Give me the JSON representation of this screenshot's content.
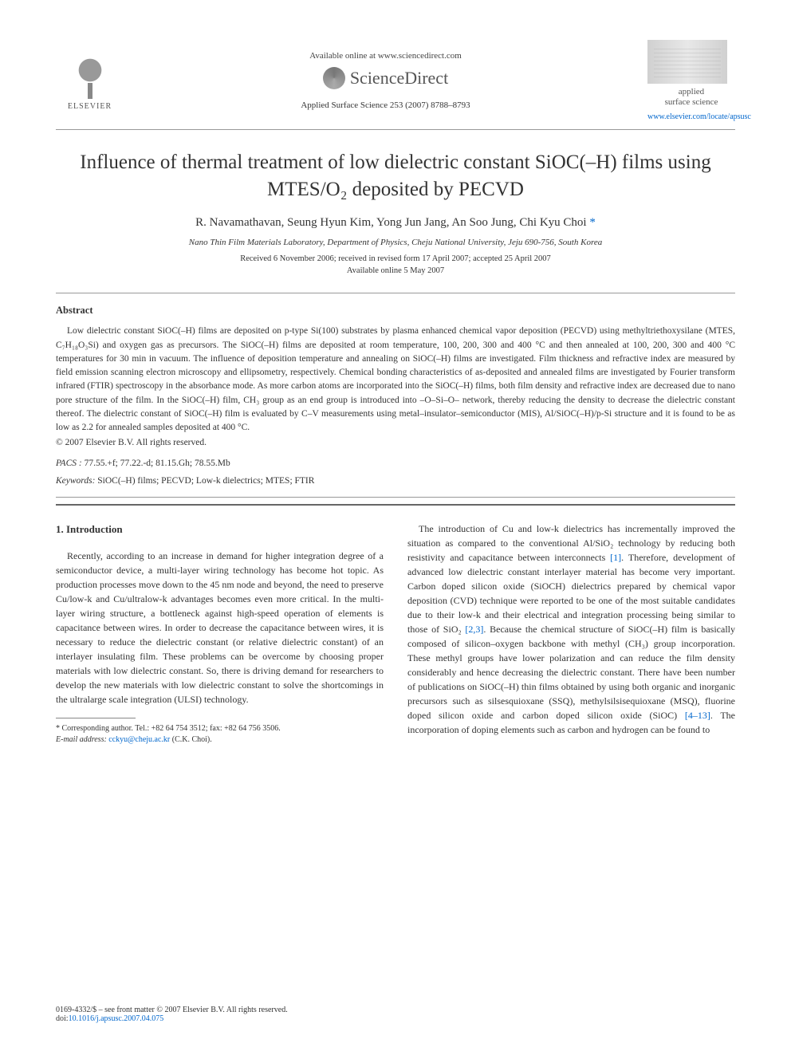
{
  "header": {
    "available_text": "Available online at www.sciencedirect.com",
    "sciencedirect": "ScienceDirect",
    "journal_cite": "Applied Surface Science 253 (2007) 8788–8793",
    "elsevier_label": "ELSEVIER",
    "journal_name_line1": "applied",
    "journal_name_line2": "surface science",
    "journal_url": "www.elsevier.com/locate/apsusc"
  },
  "title": "Influence of thermal treatment of low dielectric constant SiOC(–H) films using MTES/O₂ deposited by PECVD",
  "authors": "R. Navamathavan, Seung Hyun Kim, Yong Jun Jang, An Soo Jung, Chi Kyu Choi",
  "corresponding_mark": "*",
  "affiliation": "Nano Thin Film Materials Laboratory, Department of Physics, Cheju National University, Jeju 690-756, South Korea",
  "dates_line1": "Received 6 November 2006; received in revised form 17 April 2007; accepted 25 April 2007",
  "dates_line2": "Available online 5 May 2007",
  "abstract_heading": "Abstract",
  "abstract_text": "Low dielectric constant SiOC(–H) films are deposited on p-type Si(100) substrates by plasma enhanced chemical vapor deposition (PECVD) using methyltriethoxysilane (MTES, C₇H₁₈O₃Si) and oxygen gas as precursors. The SiOC(–H) films are deposited at room temperature, 100, 200, 300 and 400 °C and then annealed at 100, 200, 300 and 400 °C temperatures for 30 min in vacuum. The influence of deposition temperature and annealing on SiOC(–H) films are investigated. Film thickness and refractive index are measured by field emission scanning electron microscopy and ellipsometry, respectively. Chemical bonding characteristics of as-deposited and annealed films are investigated by Fourier transform infrared (FTIR) spectroscopy in the absorbance mode. As more carbon atoms are incorporated into the SiOC(–H) films, both film density and refractive index are decreased due to nano pore structure of the film. In the SiOC(–H) film, CH₃ group as an end group is introduced into –O–Si–O– network, thereby reducing the density to decrease the dielectric constant thereof. The dielectric constant of SiOC(–H) film is evaluated by C–V measurements using metal–insulator–semiconductor (MIS), Al/SiOC(–H)/p-Si structure and it is found to be as low as 2.2 for annealed samples deposited at 400 °C.",
  "copyright": "© 2007 Elsevier B.V. All rights reserved.",
  "pacs_label": "PACS :",
  "pacs_values": " 77.55.+f; 77.22.-d; 81.15.Gh; 78.55.Mb",
  "keywords_label": "Keywords:",
  "keywords_values": " SiOC(–H) films; PECVD; Low-k dielectrics; MTES; FTIR",
  "intro_heading": "1. Introduction",
  "col1_p1": "Recently, according to an increase in demand for higher integration degree of a semiconductor device, a multi-layer wiring technology has become hot topic. As production processes move down to the 45 nm node and beyond, the need to preserve Cu/low-k and Cu/ultralow-k advantages becomes even more critical. In the multi-layer wiring structure, a bottleneck against high-speed operation of elements is capacitance between wires. In order to decrease the capacitance between wires, it is necessary to reduce the dielectric constant (or relative dielectric constant) of an interlayer insulating film. These problems can be overcome by choosing proper materials with low dielectric constant. So, there is driving demand for researchers to develop the new materials with low dielectric constant to solve the shortcomings in the ultralarge scale integration (ULSI) technology.",
  "col2_p1_a": "The introduction of Cu and low-k dielectrics has incrementally improved the situation as compared to the conventional Al/SiO₂ technology by reducing both resistivity and capacitance between interconnects ",
  "col2_cite1": "[1]",
  "col2_p1_b": ". Therefore, development of advanced low dielectric constant interlayer material has become very important. Carbon doped silicon oxide (SiOCH) dielectrics prepared by chemical vapor deposition (CVD) technique were reported to be one of the most suitable candidates due to their low-k and their electrical and integration processing being similar to those of SiO₂ ",
  "col2_cite2": "[2,3]",
  "col2_p1_c": ". Because the chemical structure of SiOC(–H) film is basically composed of silicon–oxygen backbone with methyl (CH₃) group incorporation. These methyl groups have lower polarization and can reduce the film density considerably and hence decreasing the dielectric constant. There have been number of publications on SiOC(–H) thin films obtained by using both organic and inorganic precursors such as silsesquioxane (SSQ), methylsilsisequioxane (MSQ), fluorine doped silicon oxide and carbon doped silicon oxide (SiOC) ",
  "col2_cite3": "[4–13]",
  "col2_p1_d": ". The incorporation of doping elements such as carbon and hydrogen can be found to",
  "footnote_star": "* Corresponding author. Tel.: +82 64 754 3512; fax: +82 64 756 3506.",
  "footnote_email_label": "E-mail address:",
  "footnote_email": " cckyu@cheju.ac.kr",
  "footnote_email_suffix": " (C.K. Choi).",
  "footer_issn": "0169-4332/$ – see front matter © 2007 Elsevier B.V. All rights reserved.",
  "footer_doi_label": "doi:",
  "footer_doi": "10.1016/j.apsusc.2007.04.075"
}
